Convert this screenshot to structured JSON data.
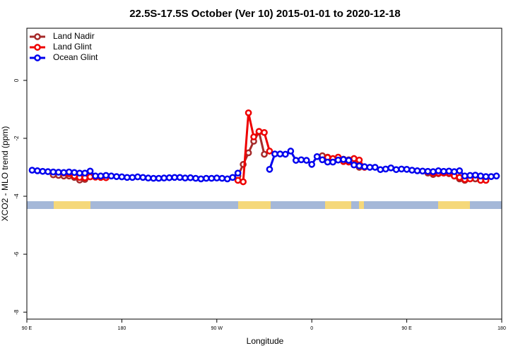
{
  "chart_data": {
    "type": "line",
    "title": "22.5S-17.5S October (Ver 10)   2015-01-01 to 2020-12-18",
    "x_label": "Longitude",
    "y_label": "XCO2 - MLO trend (ppm)",
    "xlim": [
      90,
      540
    ],
    "ylim": [
      -8.24,
      1.8
    ],
    "xticks": [
      {
        "value": 90,
        "label": "90 E"
      },
      {
        "value": 180,
        "label": "180"
      },
      {
        "value": 270,
        "label": "90 W"
      },
      {
        "value": 360,
        "label": "0"
      },
      {
        "value": 450,
        "label": "90 E"
      },
      {
        "value": 540,
        "label": "180"
      }
    ],
    "yticks": [
      0,
      -2,
      -4,
      -6,
      -8
    ],
    "legend": "top-left",
    "x": [
      95,
      100,
      105,
      110,
      115,
      120,
      125,
      130,
      135,
      140,
      145,
      150,
      155,
      160,
      165,
      170,
      175,
      180,
      185,
      190,
      195,
      200,
      205,
      210,
      215,
      220,
      225,
      230,
      235,
      240,
      245,
      250,
      255,
      260,
      265,
      270,
      275,
      280,
      285,
      290,
      295,
      300,
      305,
      310,
      315,
      320,
      325,
      330,
      335,
      340,
      345,
      350,
      355,
      360,
      365,
      370,
      375,
      380,
      385,
      390,
      395,
      400,
      405,
      410,
      415,
      420,
      425,
      430,
      435,
      440,
      445,
      450,
      455,
      460,
      465,
      470,
      475,
      480,
      485,
      490,
      495,
      500,
      505,
      510,
      515,
      520,
      525,
      530,
      535
    ],
    "series": [
      {
        "name": "Land Nadir",
        "color": "#a52a2a",
        "values": [
          null,
          null,
          null,
          null,
          -3.26,
          -3.28,
          -3.3,
          -3.3,
          -3.35,
          -3.44,
          -3.42,
          null,
          null,
          null,
          null,
          null,
          null,
          null,
          null,
          null,
          null,
          null,
          null,
          null,
          null,
          null,
          null,
          null,
          null,
          null,
          null,
          null,
          null,
          null,
          null,
          null,
          null,
          null,
          null,
          -3.3,
          -2.9,
          -2.5,
          -2.1,
          -1.78,
          -2.55,
          null,
          null,
          null,
          null,
          null,
          null,
          null,
          null,
          null,
          null,
          -2.6,
          -2.65,
          -2.7,
          -2.68,
          -2.72,
          -2.74,
          -2.7,
          -3.0,
          null,
          null,
          null,
          null,
          null,
          null,
          null,
          null,
          null,
          null,
          null,
          null,
          -3.2,
          -3.25,
          -3.22,
          -3.2,
          -3.22,
          -3.3,
          -3.4,
          -3.45,
          null,
          -3.4,
          -3.4,
          null,
          null,
          null
        ]
      },
      {
        "name": "Land Glint",
        "color": "#ee0000",
        "values": [
          null,
          null,
          null,
          null,
          null,
          null,
          -3.2,
          -3.22,
          -3.3,
          -3.35,
          -3.36,
          -3.33,
          -3.34,
          -3.35,
          -3.36,
          null,
          null,
          null,
          null,
          null,
          null,
          null,
          null,
          null,
          null,
          null,
          null,
          null,
          null,
          null,
          null,
          null,
          null,
          null,
          null,
          null,
          null,
          null,
          null,
          -3.45,
          -3.5,
          -1.12,
          -1.95,
          -1.76,
          -1.8,
          -2.44,
          null,
          null,
          null,
          null,
          null,
          null,
          null,
          null,
          null,
          null,
          -2.66,
          -2.7,
          -2.65,
          -2.8,
          -2.82,
          -2.7,
          -2.75,
          -3.0,
          null,
          null,
          null,
          null,
          null,
          null,
          null,
          null,
          null,
          null,
          null,
          -3.15,
          -3.2,
          -3.2,
          -3.2,
          -3.2,
          -3.3,
          -3.35,
          -3.42,
          -3.4,
          null,
          -3.45,
          -3.45,
          null,
          null
        ]
      },
      {
        "name": "Ocean Glint",
        "color": "#0000ee",
        "values": [
          -3.1,
          -3.12,
          -3.14,
          -3.15,
          -3.16,
          -3.17,
          -3.18,
          -3.16,
          -3.18,
          -3.2,
          -3.2,
          -3.13,
          -3.3,
          -3.3,
          -3.28,
          -3.3,
          -3.32,
          -3.33,
          -3.35,
          -3.35,
          -3.33,
          -3.35,
          -3.37,
          -3.38,
          -3.38,
          -3.37,
          -3.36,
          -3.35,
          -3.35,
          -3.37,
          -3.36,
          -3.38,
          -3.4,
          -3.38,
          -3.38,
          -3.37,
          -3.38,
          -3.4,
          -3.35,
          -3.2,
          null,
          null,
          null,
          null,
          null,
          -3.07,
          -2.54,
          -2.54,
          -2.55,
          -2.44,
          -2.76,
          -2.74,
          -2.76,
          -2.9,
          -2.63,
          -2.74,
          -2.82,
          -2.82,
          -2.75,
          -2.73,
          -2.76,
          -2.92,
          -2.95,
          -2.98,
          -3.0,
          -3.0,
          -3.08,
          -3.06,
          -3.02,
          -3.08,
          -3.06,
          -3.07,
          -3.1,
          -3.12,
          -3.13,
          -3.14,
          -3.15,
          -3.12,
          -3.14,
          -3.13,
          -3.15,
          -3.12,
          -3.3,
          -3.28,
          -3.27,
          -3.3,
          -3.32,
          -3.32,
          -3.3
        ]
      }
    ]
  }
}
